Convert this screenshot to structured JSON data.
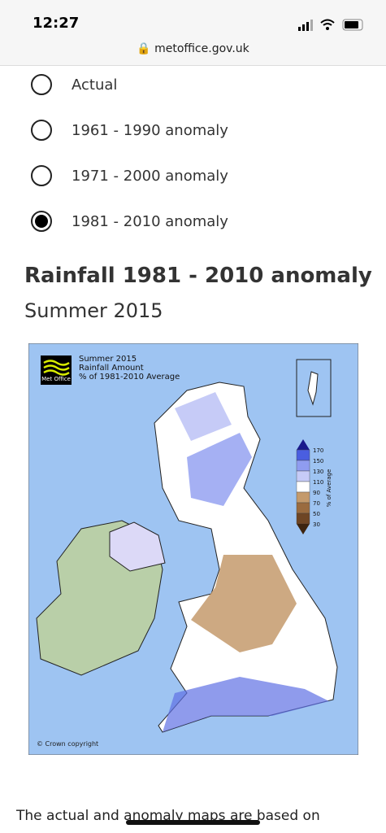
{
  "status_bar": {
    "time": "12:27"
  },
  "browser": {
    "url": "metoffice.gov.uk"
  },
  "options": [
    {
      "label": "Actual",
      "selected": false
    },
    {
      "label": "1961 - 1990 anomaly",
      "selected": false
    },
    {
      "label": "1971 - 2000 anomaly",
      "selected": false
    },
    {
      "label": "1981 - 2010 anomaly",
      "selected": true
    }
  ],
  "heading": {
    "title": "Rainfall 1981 - 2010 anomaly",
    "subtitle": "Summer 2015"
  },
  "map": {
    "logo": "Met Office",
    "title_lines": [
      "Summer 2015",
      "Rainfall Amount",
      "% of 1981-2010 Average"
    ],
    "legend": {
      "labels": [
        170,
        150,
        130,
        110,
        90,
        70,
        50,
        30
      ],
      "colors": [
        "#1a1a8c",
        "#4a5ee0",
        "#8f9cf0",
        "#c6cbf7",
        "#ffffff",
        "#c49a6c",
        "#9a6b3f",
        "#6e4524",
        "#3d2410"
      ],
      "axis_label": "% of Average"
    },
    "copyright": "© Crown copyright"
  },
  "body_text": "The actual and anomaly maps are based on"
}
